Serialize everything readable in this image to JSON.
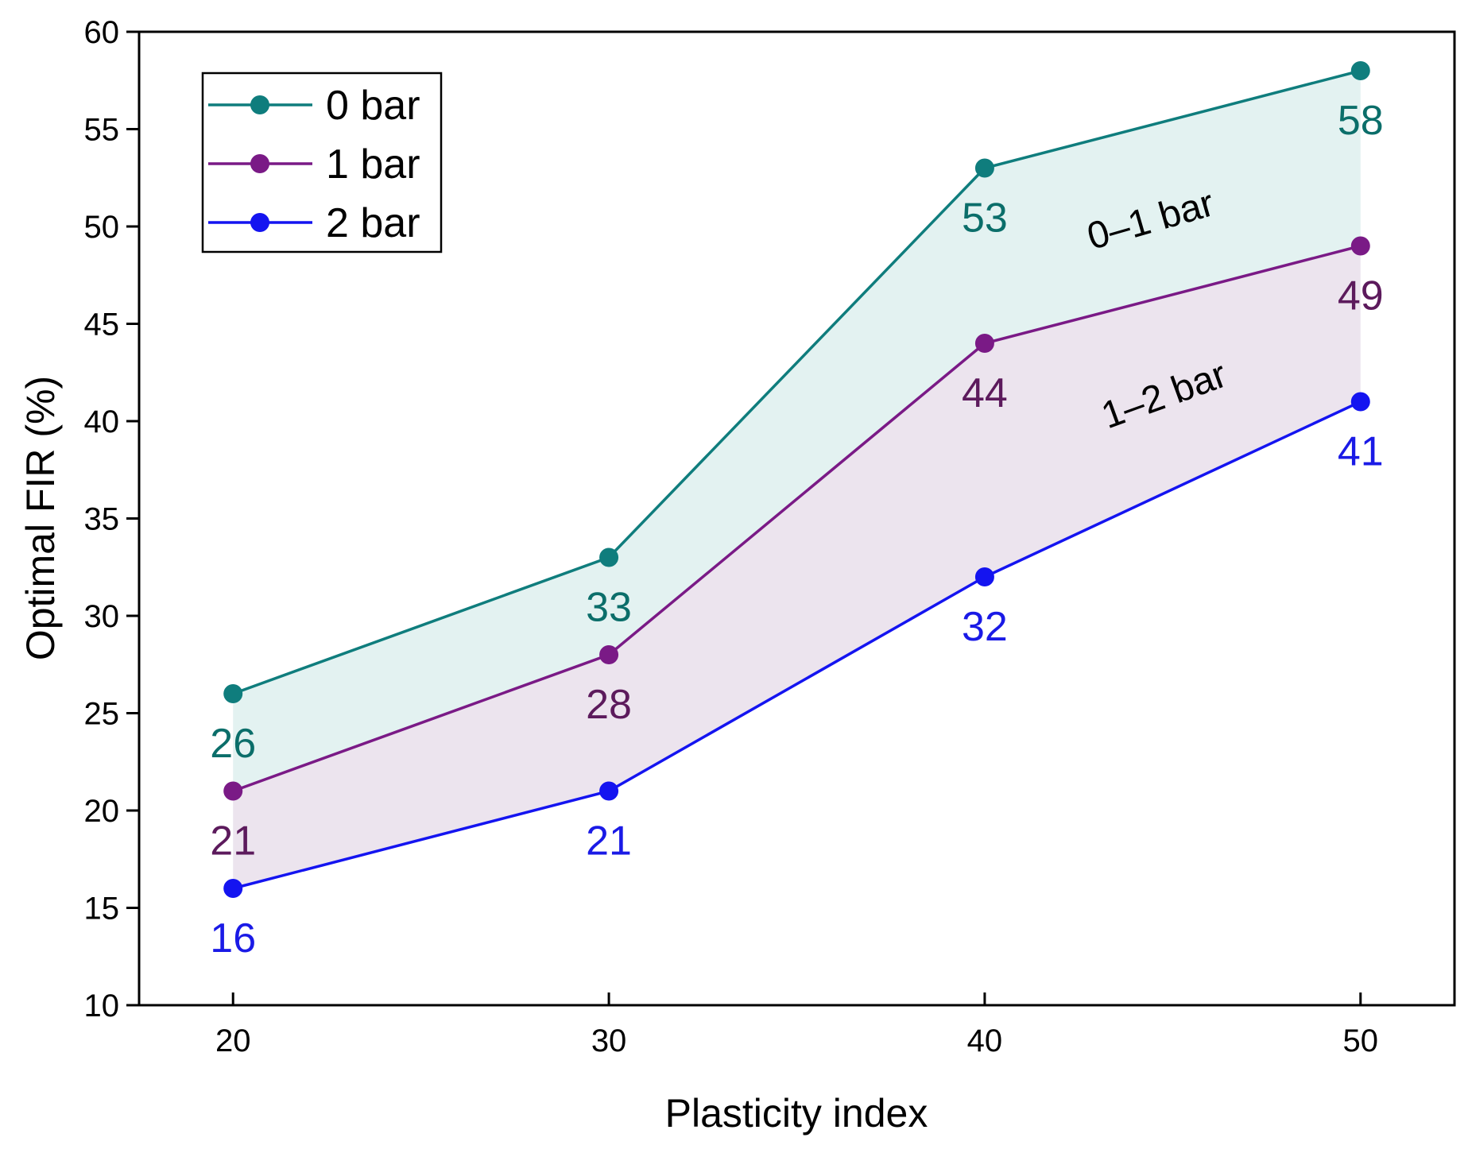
{
  "chart_data": {
    "type": "line",
    "title": "",
    "xlabel": "Plasticity index",
    "ylabel": "Optimal FIR (%)",
    "x": [
      20,
      30,
      40,
      50
    ],
    "xlim": [
      17.5,
      52.5
    ],
    "ylim": [
      10,
      60
    ],
    "xticks": [
      "20",
      "30",
      "40",
      "50"
    ],
    "yticks": [
      "10",
      "15",
      "20",
      "25",
      "30",
      "35",
      "40",
      "45",
      "50",
      "55",
      "60"
    ],
    "grid": false,
    "legend_position": "top-left",
    "series": [
      {
        "name": "0 bar",
        "color": "#0f7d7d",
        "label_color": "#0b6e6a",
        "values": [
          26,
          33,
          53,
          58
        ],
        "labels": [
          "26",
          "33",
          "53",
          "58"
        ]
      },
      {
        "name": "1 bar",
        "color": "#7a1a86",
        "label_color": "#5c1a5c",
        "values": [
          21,
          28,
          44,
          49
        ],
        "labels": [
          "21",
          "28",
          "44",
          "49"
        ]
      },
      {
        "name": "2 bar",
        "color": "#1414f0",
        "label_color": "#1a1ae6",
        "values": [
          16,
          21,
          32,
          41
        ],
        "labels": [
          "16",
          "21",
          "32",
          "41"
        ]
      }
    ],
    "bands": [
      {
        "label": "0–1 bar",
        "upper": "0 bar",
        "lower": "1 bar",
        "fill": "#e3f2f1"
      },
      {
        "label": "1–2 bar",
        "upper": "1 bar",
        "lower": "2 bar",
        "fill": "#ece4ee"
      }
    ]
  }
}
